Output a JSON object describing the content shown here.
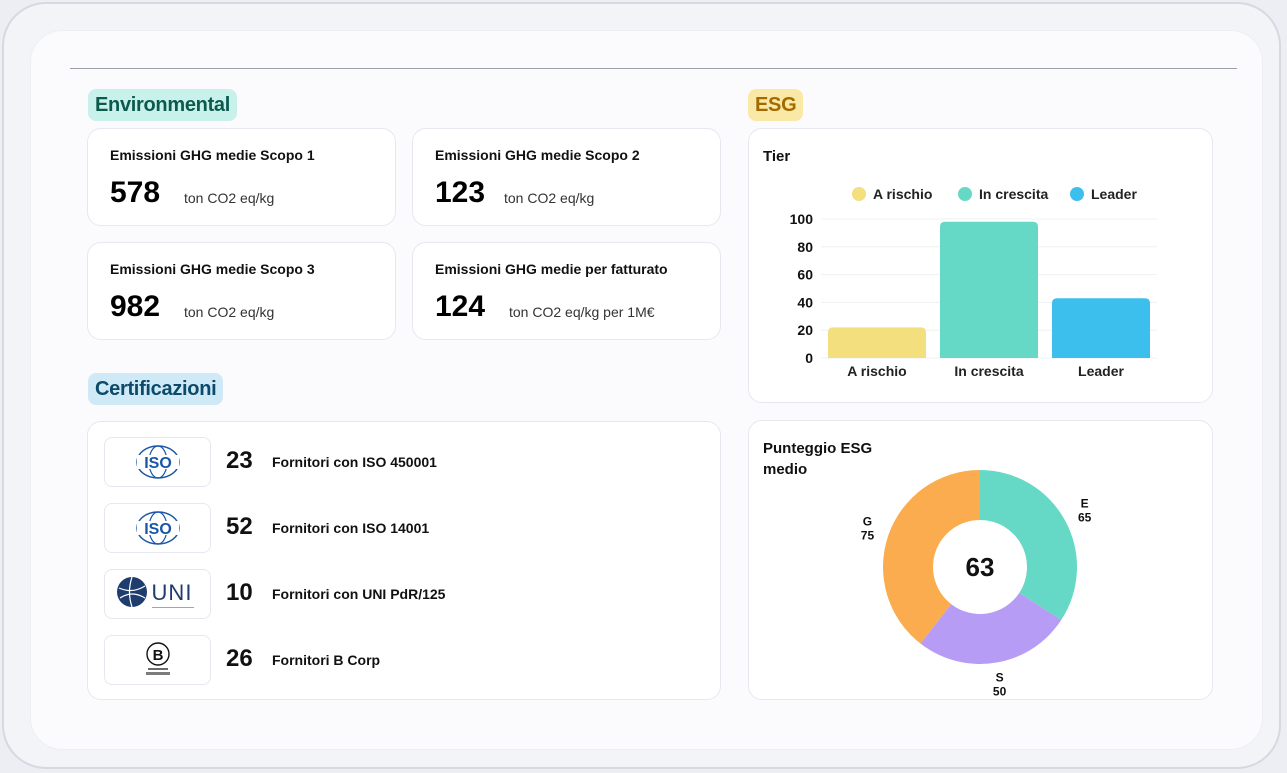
{
  "sections": {
    "environmental": "Environmental",
    "esg": "ESG",
    "certifications": "Certificazioni"
  },
  "metrics": [
    {
      "title": "Emissioni GHG medie Scopo 1",
      "value": "578",
      "unit": "ton CO2 eq/kg"
    },
    {
      "title": "Emissioni GHG medie Scopo 2",
      "value": "123",
      "unit": "ton CO2 eq/kg"
    },
    {
      "title": "Emissioni GHG medie Scopo 3",
      "value": "982",
      "unit": "ton CO2 eq/kg"
    },
    {
      "title": "Emissioni GHG medie per fatturato",
      "value": "124",
      "unit": "ton CO2 eq/kg per 1M€"
    }
  ],
  "certifications": [
    {
      "logo": "iso-logo",
      "logo_text": "ISO",
      "count": "23",
      "label": "Fornitori con ISO 450001"
    },
    {
      "logo": "iso-logo",
      "logo_text": "ISO",
      "count": "52",
      "label": "Fornitori con ISO 14001"
    },
    {
      "logo": "uni-logo",
      "logo_text": "UNI",
      "count": "10",
      "label": "Fornitori con UNI PdR/125"
    },
    {
      "logo": "bcorp-logo",
      "logo_text": "B",
      "count": "26",
      "label": "Fornitori B Corp"
    }
  ],
  "chart_data": [
    {
      "type": "bar",
      "title": "Tier",
      "categories": [
        "A rischio",
        "In crescita",
        "Leader"
      ],
      "values": [
        22,
        98,
        43
      ],
      "colors": [
        "#f4df7e",
        "#66d9c6",
        "#3dbfee"
      ],
      "ylim": [
        0,
        100
      ],
      "yticks": [
        0,
        20,
        40,
        60,
        80,
        100
      ],
      "legend": "top-center",
      "grid": true
    },
    {
      "type": "pie",
      "title": "Punteggio ESG medio",
      "center_value": "63",
      "slices": [
        {
          "label": "E",
          "value": 65,
          "color": "#66d9c6"
        },
        {
          "label": "S",
          "value": 50,
          "color": "#b69cf5"
        },
        {
          "label": "G",
          "value": 75,
          "color": "#fbac4e"
        }
      ]
    }
  ]
}
